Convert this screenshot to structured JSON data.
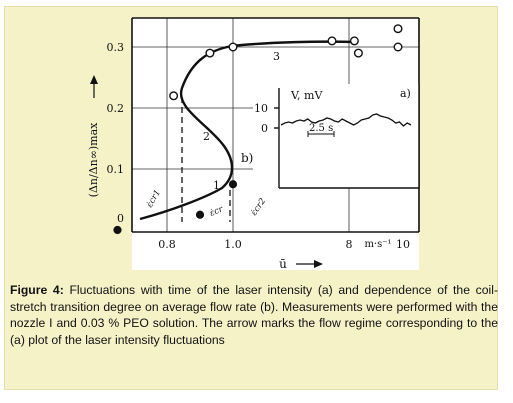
{
  "figure": {
    "caption_label": "Figure 4:",
    "caption_text": " Fluctuations with time of the laser intensity (a) and dependence of the coil-stretch transition degree on average flow rate (b). Measurements were performed with the nozzle I and 0.03 % PEO solution. The arrow marks the flow regime corresponding to the (a) plot of  the laser intensity fluctuations",
    "panel_color": "#f5f2c8"
  },
  "chart_data": [
    {
      "panel": "b",
      "type": "scatter",
      "panel_label": "b)",
      "ylabel": "(Δn/Δn∞)max",
      "xlabel": "ū",
      "x_unit": "m·s⁻¹",
      "x_ticks": [
        "0.8",
        "1.0",
        "8",
        "10"
      ],
      "y_ticks": [
        "0",
        "0.1",
        "0.2",
        "0.3"
      ],
      "x_scale": "broken axis (0.6–1.2 region, then 8–10 m·s⁻¹)",
      "ylim": [
        0,
        0.33
      ],
      "curve_labels": [
        "1",
        "2",
        "3"
      ],
      "critical_labels": [
        "ε̇cr1",
        "ε̇cr",
        "ε̇cr2"
      ],
      "grid": true,
      "filled_points": [
        {
          "x": 0.65,
          "y": 0.0
        },
        {
          "x": 0.9,
          "y": 0.025
        },
        {
          "x": 1.0,
          "y": 0.075
        }
      ],
      "open_points": [
        {
          "x": 0.82,
          "y": 0.22
        },
        {
          "x": 0.93,
          "y": 0.29
        },
        {
          "x": 1.0,
          "y": 0.3
        },
        {
          "x": 1.3,
          "y": 0.31
        },
        {
          "x": 1.38,
          "y": 0.29
        },
        {
          "x": 1.5,
          "y": 0.3
        },
        {
          "x": 1.5,
          "y": 0.33
        },
        {
          "x": 8.2,
          "y": 0.31
        }
      ]
    },
    {
      "panel": "a",
      "type": "line",
      "panel_label": "a)",
      "ylabel": "V, mV",
      "y_ticks": [
        "0",
        "10"
      ],
      "time_scale_label": "2.5 s",
      "values": [
        1.5,
        2.5,
        3,
        2.5,
        3.5,
        4,
        3.5,
        4.5,
        3,
        2.5,
        3.5,
        4,
        5,
        4.5,
        3.5,
        3,
        4.5,
        3.5,
        2.5,
        1.5,
        2.5,
        4,
        4.5,
        5,
        6.5,
        7,
        6,
        5.5,
        5,
        4,
        2.5,
        3,
        1,
        2.5,
        1.5
      ]
    }
  ]
}
